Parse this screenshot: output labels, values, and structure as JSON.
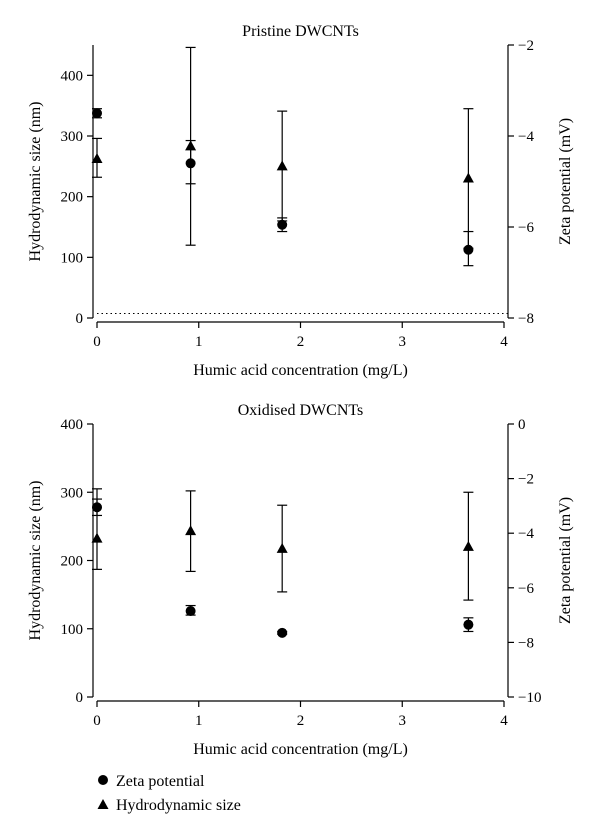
{
  "chart_data": [
    {
      "type": "scatter",
      "title": "Pristine DWCNTs",
      "xlabel": "Humic acid concentration (mg/L)",
      "ylabel": "Hydrodynamic size (nm)",
      "y2label": "Zeta potential (mV)",
      "xlim": [
        0,
        4
      ],
      "ylim": [
        0,
        450
      ],
      "y2lim": [
        -8,
        -2
      ],
      "xticks": [
        "0",
        "1",
        "2",
        "3",
        "4"
      ],
      "yticks": [
        "0",
        "100",
        "200",
        "300",
        "400"
      ],
      "y2ticks": [
        "−8",
        "−6",
        "−4",
        "−2"
      ],
      "reference_line": {
        "axis": "y2",
        "value": -7.9,
        "style": "dotted"
      },
      "series": [
        {
          "name": "Zeta potential",
          "marker": "circle",
          "axis": "y2",
          "x": [
            0,
            0.92,
            1.82,
            3.65
          ],
          "y": [
            -3.5,
            -4.6,
            -5.95,
            -6.5
          ],
          "err_low": [
            -3.6,
            -5.05,
            -6.1,
            -6.85
          ],
          "err_high": [
            -3.4,
            -4.1,
            -5.8,
            -6.1
          ]
        },
        {
          "name": "Hydrodynamic size",
          "marker": "triangle",
          "axis": "y",
          "x": [
            0,
            0.92,
            1.82,
            3.65
          ],
          "y": [
            262,
            283,
            250,
            230
          ],
          "err_low": [
            232,
            120,
            160,
            115
          ],
          "err_high": [
            296,
            446,
            341,
            345
          ]
        }
      ]
    },
    {
      "type": "scatter",
      "title": "Oxidised DWCNTs",
      "xlabel": "Humic acid concentration (mg/L)",
      "ylabel": "Hydrodynamic size (nm)",
      "y2label": "Zeta potential (mV)",
      "xlim": [
        0,
        4
      ],
      "ylim": [
        0,
        400
      ],
      "y2lim": [
        -10,
        0
      ],
      "xticks": [
        "0",
        "1",
        "2",
        "3",
        "4"
      ],
      "yticks": [
        "0",
        "100",
        "200",
        "300",
        "400"
      ],
      "y2ticks": [
        "−10",
        "−8",
        "−6",
        "−4",
        "−2",
        "0"
      ],
      "series": [
        {
          "name": "Zeta potential",
          "marker": "circle",
          "axis": "y2",
          "x": [
            0,
            0.92,
            1.82,
            3.65
          ],
          "y": [
            -3.05,
            -6.85,
            -7.65,
            -7.35
          ],
          "err_low": [
            -3.35,
            -7.0,
            -7.7,
            -7.6
          ],
          "err_high": [
            -2.75,
            -6.65,
            -7.6,
            -7.1
          ]
        },
        {
          "name": "Hydrodynamic size",
          "marker": "triangle",
          "axis": "y",
          "x": [
            0,
            0.92,
            1.82,
            3.65
          ],
          "y": [
            232,
            243,
            217,
            220
          ],
          "err_low": [
            187,
            184,
            154,
            142
          ],
          "err_high": [
            305,
            302,
            281,
            300
          ]
        }
      ]
    }
  ],
  "legend": {
    "items": [
      {
        "label": "Zeta potential",
        "marker": "circle"
      },
      {
        "label": "Hydrodynamic size",
        "marker": "triangle"
      }
    ]
  }
}
